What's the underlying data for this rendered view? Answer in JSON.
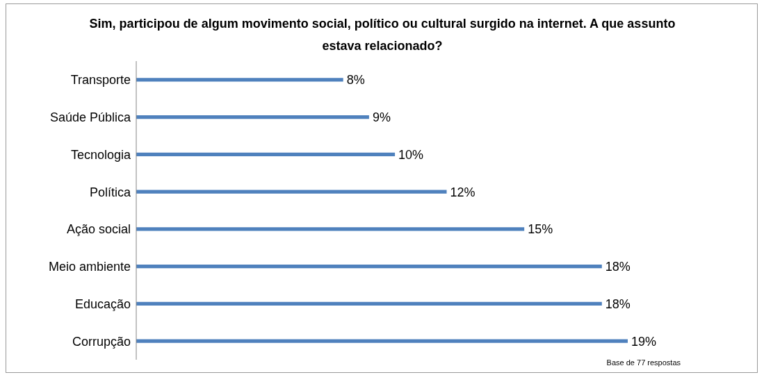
{
  "chart_data": {
    "type": "bar",
    "orientation": "horizontal",
    "title": "Sim, participou de algum movimento social, político ou cultural surgido na internet.  A que assunto estava relacionado?",
    "categories": [
      "Transporte",
      "Saúde Pública",
      "Tecnologia",
      "Política",
      "Ação social",
      "Meio ambiente",
      "Educação",
      "Corrupção"
    ],
    "values": [
      8,
      9,
      10,
      12,
      15,
      18,
      18,
      19
    ],
    "value_labels": [
      "8%",
      "9%",
      "10%",
      "12%",
      "15%",
      "18%",
      "18%",
      "19%"
    ],
    "color": "#4f81bd",
    "annotations": [
      "Base de 77 respostas"
    ]
  }
}
